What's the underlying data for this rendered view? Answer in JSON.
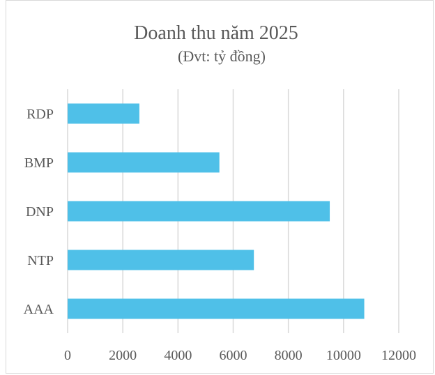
{
  "chart_data": {
    "type": "bar",
    "orientation": "horizontal",
    "title": "Doanh thu năm 2025",
    "subtitle": "(Đvt: tỷ đồng)",
    "categories": [
      "RDP",
      "BMP",
      "DNP",
      "NTP",
      "AAA"
    ],
    "values": [
      2600,
      5500,
      9500,
      6750,
      10750
    ],
    "xlim": [
      0,
      12000
    ],
    "x_ticks": [
      "0",
      "2000",
      "4000",
      "6000",
      "8000",
      "10000",
      "12000"
    ],
    "xlabel": "",
    "ylabel": "",
    "grid": "vertical",
    "legend": "none",
    "bar_color": "#4fc0e8",
    "grid_color": "#d9d9d9",
    "text_color": "#595959"
  }
}
